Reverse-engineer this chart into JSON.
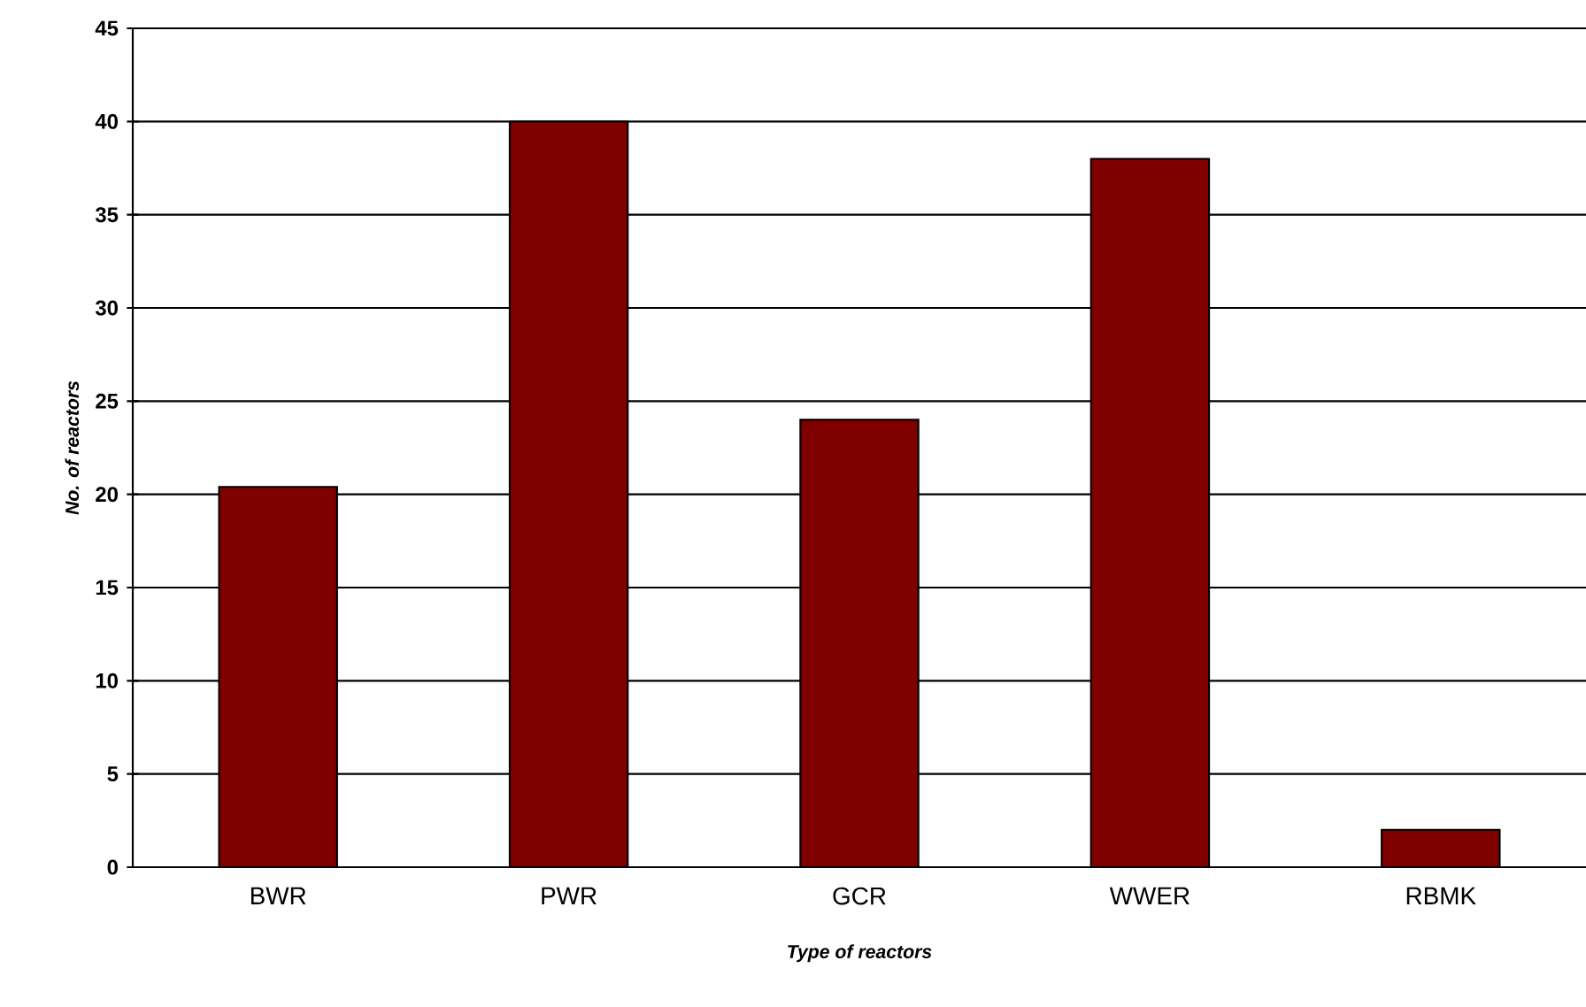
{
  "chart_data": {
    "type": "bar",
    "xlabel": "Type of reactors",
    "ylabel": "No. of reactors",
    "categories": [
      "BWR",
      "PWR",
      "GCR",
      "WWER",
      "RBMK"
    ],
    "values": [
      20.4,
      40,
      24,
      38,
      2
    ],
    "color": "#800000",
    "ylim": [
      0,
      45
    ],
    "yticks": [
      0,
      5,
      10,
      15,
      20,
      25,
      30,
      35,
      40,
      45
    ],
    "grid": "y"
  }
}
